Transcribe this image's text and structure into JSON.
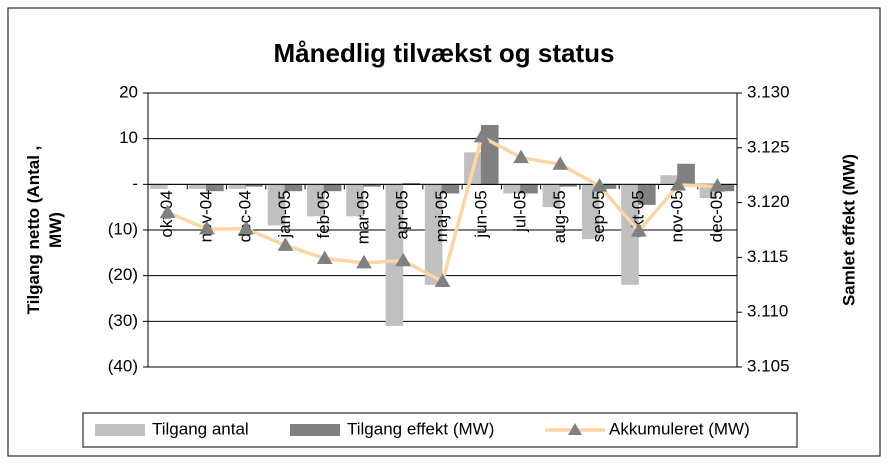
{
  "chart_data": {
    "type": "bar",
    "title": "Månedlig tilvækst og status",
    "y_label": [
      "Tilgang netto (Antal ,",
      "MW)"
    ],
    "y2_label": "Samlet effekt (MW)",
    "categories": [
      "okt-04",
      "nov-04",
      "dec-04",
      "jan-05",
      "feb-05",
      "mar-05",
      "apr-05",
      "maj-05",
      "jun-05",
      "jul-05",
      "aug-05",
      "sep-05",
      "okt-05",
      "nov-05",
      "dec-05"
    ],
    "series": [
      {
        "name": "Tilgang antal",
        "type": "bar",
        "color": "#c0c0c0",
        "values": [
          -1,
          -1,
          -1,
          -9,
          -7,
          -7,
          -31,
          -22,
          7,
          -2,
          -5,
          -12,
          -22,
          2,
          -3
        ]
      },
      {
        "name": "Tilgang effekt (MW)",
        "type": "bar",
        "color": "#808080",
        "values": [
          0,
          -1.5,
          -0.5,
          -1.5,
          -1.5,
          -0.5,
          0.3,
          -2,
          13,
          -2,
          -0.5,
          -1,
          -4.5,
          4.5,
          -1.5
        ]
      },
      {
        "name": "Akkumuleret (MW)",
        "type": "line",
        "axis": "y2",
        "color": "#fcd5a5",
        "marker_color": "#808080",
        "values": [
          3119.1,
          3117.6,
          3117.6,
          3116.1,
          3114.9,
          3114.5,
          3114.7,
          3112.8,
          3126.0,
          3124.1,
          3123.5,
          3121.5,
          3117.4,
          3121.6,
          3121.5
        ]
      }
    ],
    "ylim": [
      -40,
      20
    ],
    "yticks": [
      20,
      10,
      {
        "value": 0,
        "label": "-"
      },
      {
        "value": -10,
        "label": "(10)"
      },
      {
        "value": -20,
        "label": "(20)"
      },
      {
        "value": -30,
        "label": "(30)"
      },
      {
        "value": -40,
        "label": "(40)"
      }
    ],
    "y2lim": [
      3105,
      3130
    ],
    "y2ticks": [
      {
        "value": 3130,
        "label": "3.130"
      },
      {
        "value": 3125,
        "label": "3.125"
      },
      {
        "value": 3120,
        "label": "3.120"
      },
      {
        "value": 3115,
        "label": "3.115"
      },
      {
        "value": 3110,
        "label": "3.110"
      },
      {
        "value": 3105,
        "label": "3.105"
      }
    ],
    "grid": true,
    "legend": "bottom"
  }
}
